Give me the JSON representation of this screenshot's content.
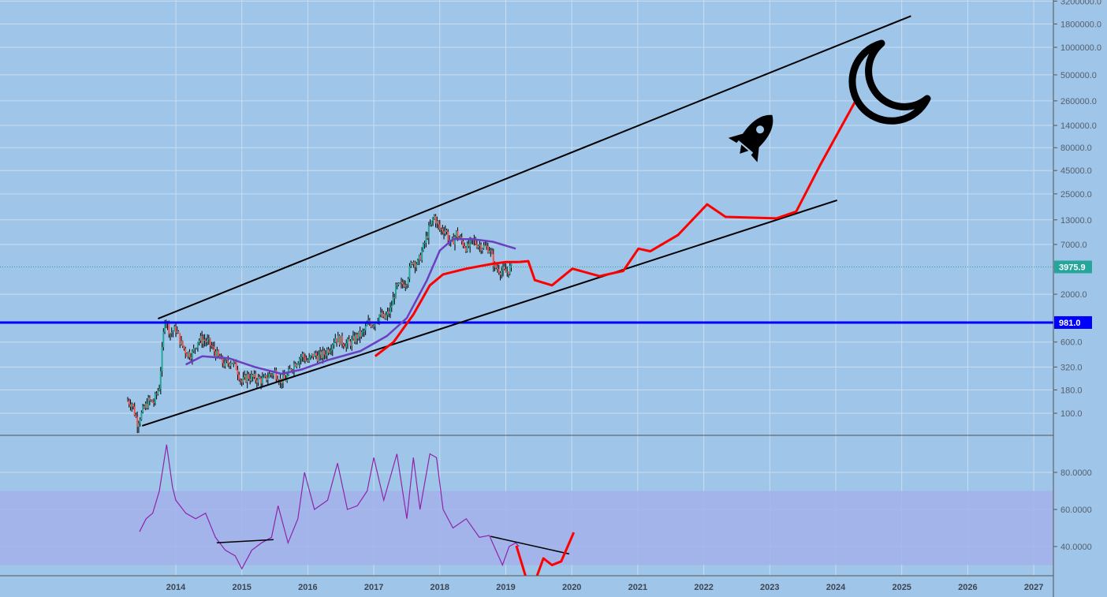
{
  "colors": {
    "background": "#9fc5e8",
    "grid": "#c9def2",
    "candle_up": "#26a69a",
    "candle_down": "#ef5350",
    "horizontal_line": "#0000ff",
    "price_tag": "#26a69a",
    "ma_purple": "#6a3fc0",
    "forecast_red": "#ff0000",
    "rsi_line": "#8e24aa",
    "rsi_band": "#a3b0ea"
  },
  "chart_data": [
    {
      "type": "candlestick",
      "scale": "log",
      "ylim": [
        50,
        3200000
      ],
      "xlim": [
        2012.85,
        2027.35
      ],
      "grid": true,
      "y_ticks": [
        "3200000.0",
        "1800000.0",
        "1000000.0",
        "500000.0",
        "260000.0",
        "140000.0",
        "80000.0",
        "45000.0",
        "25000.0",
        "13000.0",
        "7000.0",
        "2000.0",
        "600.0",
        "320.0",
        "180.0",
        "100.0"
      ],
      "y_tick_values": [
        3200000,
        1800000,
        1000000,
        500000,
        260000,
        140000,
        80000,
        45000,
        25000,
        13000,
        7000,
        2000,
        600,
        320,
        180,
        100
      ],
      "x_ticks": [
        "2014",
        "2015",
        "2016",
        "2017",
        "2018",
        "2019",
        "2020",
        "2021",
        "2022",
        "2023",
        "2024",
        "2025",
        "2026",
        "2027"
      ],
      "monthly_close_start": 2013.25,
      "monthly_close": [
        139,
        129,
        80,
        106,
        135,
        133,
        198,
        1130,
        757,
        832,
        573,
        457,
        448,
        630,
        640,
        586,
        481,
        387,
        338,
        378,
        320,
        217,
        254,
        244,
        236,
        230,
        263,
        284,
        230,
        236,
        314,
        378,
        430,
        368,
        437,
        416,
        448,
        531,
        673,
        624,
        573,
        609,
        700,
        742,
        964,
        970,
        1190,
        1080,
        1350,
        2300,
        2500,
        2875,
        4700,
        4340,
        6470,
        10200,
        14150,
        10200,
        10300,
        6900,
        9250,
        7500,
        6400,
        7730,
        7030,
        6630,
        6370,
        4000,
        3700,
        3450,
        3975.9
      ],
      "last_price": {
        "value": 3975.9,
        "label": "3975.9"
      },
      "horizontal_level": {
        "value": 981,
        "label": "981.0"
      },
      "moving_average_purple": [
        [
          2014.15,
          340
        ],
        [
          2014.4,
          420
        ],
        [
          2014.8,
          400
        ],
        [
          2015.2,
          320
        ],
        [
          2015.6,
          270
        ],
        [
          2015.9,
          300
        ],
        [
          2016.3,
          380
        ],
        [
          2016.8,
          480
        ],
        [
          2017.2,
          700
        ],
        [
          2017.5,
          1100
        ],
        [
          2017.8,
          2800
        ],
        [
          2018.0,
          6000
        ],
        [
          2018.2,
          8000
        ],
        [
          2018.5,
          8000
        ],
        [
          2018.8,
          7500
        ],
        [
          2019.15,
          6300
        ]
      ],
      "moving_average_red": [
        [
          2017.02,
          420
        ],
        [
          2017.3,
          600
        ],
        [
          2017.6,
          1200
        ],
        [
          2017.85,
          2500
        ],
        [
          2018.05,
          3300
        ],
        [
          2018.4,
          3800
        ],
        [
          2018.8,
          4300
        ],
        [
          2019.0,
          4500
        ],
        [
          2019.2,
          4500
        ]
      ],
      "forecast_red": [
        [
          2019.2,
          4500
        ],
        [
          2019.34,
          4600
        ],
        [
          2019.44,
          2850
        ],
        [
          2019.7,
          2500
        ],
        [
          2020.01,
          3800
        ],
        [
          2020.42,
          3150
        ],
        [
          2020.78,
          3600
        ],
        [
          2021.01,
          6300
        ],
        [
          2021.19,
          5900
        ],
        [
          2021.61,
          8900
        ],
        [
          2022.05,
          19200
        ],
        [
          2022.33,
          14000
        ],
        [
          2023.1,
          13500
        ],
        [
          2023.4,
          16000
        ],
        [
          2023.76,
          51000
        ],
        [
          2024.3,
          260000
        ]
      ],
      "channel_upper": [
        [
          2013.73,
          1080
        ],
        [
          2025.14,
          2200000
        ]
      ],
      "channel_lower": [
        [
          2013.49,
          73
        ],
        [
          2024.02,
          21300
        ]
      ],
      "annotations": [
        "rocket-icon",
        "moon-icon"
      ]
    },
    {
      "type": "line",
      "name_hidden": true,
      "ylim": [
        18,
        100
      ],
      "y_ticks": [
        "80.0000",
        "60.0000",
        "40.0000"
      ],
      "y_tick_values": [
        80,
        60,
        40
      ],
      "band": [
        30,
        70
      ],
      "series": [
        [
          2013.45,
          48
        ],
        [
          2013.55,
          55
        ],
        [
          2013.65,
          58
        ],
        [
          2013.75,
          70
        ],
        [
          2013.86,
          95
        ],
        [
          2013.95,
          72
        ],
        [
          2014.0,
          65
        ],
        [
          2014.15,
          58
        ],
        [
          2014.3,
          55
        ],
        [
          2014.45,
          58
        ],
        [
          2014.6,
          45
        ],
        [
          2014.75,
          38
        ],
        [
          2014.9,
          35
        ],
        [
          2015.0,
          28
        ],
        [
          2015.15,
          38
        ],
        [
          2015.3,
          42
        ],
        [
          2015.45,
          45
        ],
        [
          2015.55,
          62
        ],
        [
          2015.7,
          42
        ],
        [
          2015.85,
          55
        ],
        [
          2015.95,
          80
        ],
        [
          2016.1,
          60
        ],
        [
          2016.3,
          65
        ],
        [
          2016.45,
          85
        ],
        [
          2016.6,
          60
        ],
        [
          2016.75,
          62
        ],
        [
          2016.9,
          70
        ],
        [
          2017.0,
          88
        ],
        [
          2017.15,
          65
        ],
        [
          2017.35,
          90
        ],
        [
          2017.5,
          55
        ],
        [
          2017.6,
          88
        ],
        [
          2017.7,
          60
        ],
        [
          2017.85,
          90
        ],
        [
          2017.95,
          88
        ],
        [
          2018.05,
          60
        ],
        [
          2018.2,
          50
        ],
        [
          2018.4,
          55
        ],
        [
          2018.6,
          45
        ],
        [
          2018.75,
          46
        ],
        [
          2018.85,
          38
        ],
        [
          2018.95,
          30
        ],
        [
          2019.05,
          40
        ],
        [
          2019.15,
          42
        ],
        [
          2019.2,
          40
        ]
      ],
      "forecast_red": [
        [
          2019.16,
          40.4
        ],
        [
          2019.3,
          24
        ],
        [
          2019.45,
          22
        ],
        [
          2019.57,
          33.6
        ],
        [
          2019.7,
          30
        ],
        [
          2019.84,
          32
        ],
        [
          2020.03,
          47.6
        ]
      ],
      "trendlines": [
        [
          [
            2014.62,
            42
          ],
          [
            2015.48,
            43.7
          ]
        ],
        [
          [
            2018.77,
            45.5
          ],
          [
            2019.96,
            36
          ]
        ]
      ]
    }
  ]
}
